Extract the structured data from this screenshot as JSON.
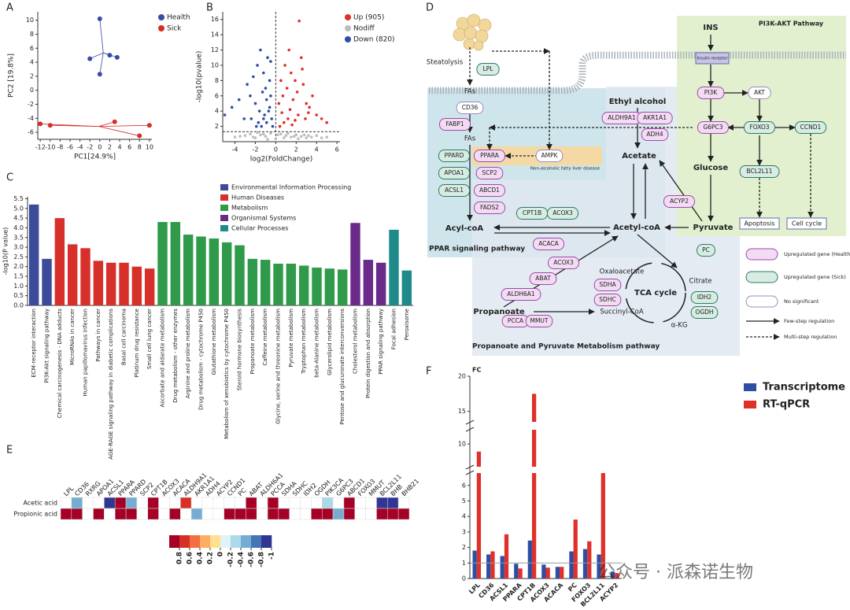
{
  "panel_labels": [
    "A",
    "B",
    "C",
    "D",
    "E",
    "F"
  ],
  "watermark": "公众号 · 派森诺生物",
  "chart_data": [
    {
      "type": "scatter",
      "xlabel": "PC1[24.9%]",
      "ylabel": "PC2 [19.8%]",
      "xlim": [
        -12.5,
        10.5
      ],
      "ylim": [
        -7,
        11.2
      ],
      "xticks": [
        -12,
        -10,
        -8,
        -6,
        -4,
        -2,
        0,
        2,
        4,
        6,
        8,
        10
      ],
      "yticks": [
        -6,
        -4,
        -2,
        0,
        2,
        4,
        6,
        8,
        10
      ],
      "connectors": true,
      "series": [
        {
          "name": "Health",
          "color": "#3b4aa8",
          "x": [
            0,
            -2,
            2,
            3.5,
            0
          ],
          "y": [
            10.2,
            4.5,
            5,
            4.7,
            2.3
          ]
        },
        {
          "name": "Sick",
          "color": "#d62d28",
          "x": [
            -12,
            -10,
            3,
            8,
            10
          ],
          "y": [
            -4.8,
            -5,
            -4.5,
            -6.5,
            -5
          ]
        }
      ]
    },
    {
      "type": "scatter",
      "xlabel": "log2(FoldChange)",
      "ylabel": "-log10(pvalue)",
      "xlim": [
        -5.2,
        6.3
      ],
      "ylim": [
        0,
        17
      ],
      "xticks": [
        -4,
        -2,
        0,
        2,
        4,
        6
      ],
      "yticks": [
        2,
        4,
        6,
        8,
        10,
        12,
        14,
        16
      ],
      "thresholds": {
        "x": 0,
        "y": 1.3
      },
      "series": [
        {
          "name": "Up (905)",
          "color": "#e0302a",
          "x": [
            0.3,
            0.5,
            0.7,
            0.9,
            1.1,
            1.3,
            1.5,
            1.7,
            1.9,
            2.1,
            2.3,
            2.5,
            2.7,
            3,
            3.3,
            3.6,
            4,
            4.5,
            5,
            2.6,
            1.2,
            0.8,
            1.6,
            2.2,
            0.6,
            1.4,
            2.9,
            0.4,
            1.9,
            3.2
          ],
          "y": [
            5,
            8,
            6,
            10,
            7,
            12,
            9,
            5.5,
            8,
            6.5,
            15.8,
            11,
            7.5,
            5,
            4.5,
            6,
            3.5,
            3,
            2.5,
            9.5,
            3,
            2.5,
            2.2,
            3.5,
            3.8,
            4.2,
            3,
            2,
            2.8,
            3.8
          ]
        },
        {
          "name": "Nodiff",
          "color": "#bdbdbd",
          "x": [
            -4,
            -3,
            -2.5,
            -2,
            -1.5,
            -1,
            -0.5,
            0,
            0.5,
            1,
            1.5,
            2,
            2.5,
            3,
            3.5,
            4,
            4.5,
            5,
            -3.5,
            -1.8,
            -0.8,
            0.2,
            1.2,
            2.2,
            3.2,
            -2.2,
            -1.2,
            0.8,
            1.8,
            2.8
          ],
          "y": [
            0.6,
            0.8,
            1,
            0.5,
            0.9,
            0.7,
            1.1,
            0.4,
            1,
            0.8,
            0.6,
            0.9,
            0.7,
            0.5,
            0.6,
            0.8,
            0.5,
            0.6,
            0.7,
            1.2,
            0.3,
            0.9,
            1.1,
            0.4,
            0.8,
            0.6,
            1,
            0.5,
            0.7,
            0.9
          ]
        },
        {
          "name": "Down (820)",
          "color": "#2c4fa3",
          "x": [
            -5,
            -4.3,
            -3.6,
            -3.1,
            -2.8,
            -2.5,
            -2.2,
            -2,
            -1.8,
            -1.6,
            -1.5,
            -1.3,
            -1.2,
            -1.1,
            -1,
            -0.9,
            -0.8,
            -0.7,
            -0.6,
            -0.5,
            -0.4,
            -0.3,
            -1.7,
            -2.4,
            -1.4,
            -0.9,
            -0.6,
            -1.9,
            -1.2,
            -0.5
          ],
          "y": [
            3.5,
            4.5,
            5.5,
            3,
            7.5,
            6,
            8.5,
            5,
            10,
            4,
            12,
            6.5,
            9,
            3.5,
            7,
            5.5,
            11,
            4,
            8,
            6,
            3,
            2,
            2.5,
            3,
            2,
            2.5,
            4.5,
            2,
            3,
            10.5
          ]
        }
      ]
    },
    {
      "type": "bar",
      "ylabel": "-log10(P value)",
      "ylim": [
        0,
        5.6
      ],
      "yticks": [
        {
          "value": 0,
          "label": "0.0"
        },
        {
          "value": 0.5,
          "label": "0.5"
        },
        {
          "value": 1,
          "label": "1.0"
        },
        {
          "value": 1.5,
          "label": "1.5"
        },
        {
          "value": 2,
          "label": "2.0"
        },
        {
          "value": 2.5,
          "label": "2.5"
        },
        {
          "value": 3,
          "label": "3.0"
        },
        {
          "value": 3.5,
          "label": "3.5"
        },
        {
          "value": 4,
          "label": "4.0"
        },
        {
          "value": 4.5,
          "label": "4.5"
        },
        {
          "value": 5,
          "label": "5.0"
        },
        {
          "value": 5.5,
          "label": "5.5"
        }
      ],
      "series": [
        {
          "name": "Environmental Information Processing",
          "color": "#3b4b9a",
          "categories": [
            "ECM-receptor interaction",
            "PI3K-Akt signaling pathway"
          ],
          "values": [
            5.2,
            2.4
          ]
        },
        {
          "name": "Human Diseases",
          "color": "#d7302a",
          "categories": [
            "Chemical carcinogenesis - DNA adducts",
            "MicroRNAs in cancer",
            "Human papillomavirus infection",
            "Pathways in cancer",
            "AGE-RAGE signaling pathway in diabetic complications",
            "Basal cell carcinoma",
            "Platinum drug resistance",
            "Small cell lung cancer"
          ],
          "values": [
            4.5,
            3.15,
            2.95,
            2.3,
            2.2,
            2.2,
            2.0,
            1.9
          ]
        },
        {
          "name": "Metabolism",
          "color": "#2e9a4a",
          "categories": [
            "Ascorbate and aldarate metabolism",
            "Drug metabolism - other enzymes",
            "Arginine and proline metabolism",
            "Drug metabolism - cytochrome P450",
            "Glutathione metabolism",
            "Metabolism of xenobiotics by cytochrome P450",
            "Steroid hormone biosynthesis",
            "Propanoate metabolism",
            "Caffeine metabolism",
            "Glycine, serine and threonine metabolism",
            "Pyruvate metabolism",
            "Tryptophan metabolism",
            "beta-Alanine metabolism",
            "Glycerolipid metabolism",
            "Pentose and glucuronate interconversions"
          ],
          "values": [
            4.3,
            4.3,
            3.65,
            3.55,
            3.45,
            3.25,
            3.1,
            2.4,
            2.35,
            2.15,
            2.15,
            2.05,
            1.95,
            1.9,
            1.85
          ]
        },
        {
          "name": "Organismal Systems",
          "color": "#6a2a8a",
          "categories": [
            "Cholesterol metabolism",
            "Protein digestion and absorption",
            "PPAR signaling pathway"
          ],
          "values": [
            4.25,
            2.35,
            2.2
          ]
        },
        {
          "name": "Cellular Processes",
          "color": "#1e8a8a",
          "categories": [
            "Focal adhesion",
            "Peroxisome"
          ],
          "values": [
            3.9,
            1.8
          ]
        }
      ]
    },
    {
      "type": "heatmap",
      "columns": [
        "LPL",
        "CD36",
        "RXRG",
        "APOA1",
        "ACSL1",
        "PPARA",
        "PPARD",
        "SCP2",
        "CPT1B",
        "ACOX3",
        "ACACA",
        "ALDH9A1",
        "AKR1A1",
        "ADH4",
        "ACYP2",
        "CCND1",
        "PC",
        "ABAT",
        "ALDH6A1",
        "PCCA",
        "SDHA",
        "SDHC",
        "IDH2",
        "OGDH",
        "PIK3CA",
        "G6PC3",
        "ABCD1",
        "FOXO3",
        "MMUT",
        "BCL2L11",
        "BHB",
        "BHB21"
      ],
      "rows": [
        "Acetic acid",
        "Propionic acid"
      ],
      "values": [
        [
          null,
          -0.5,
          null,
          null,
          -0.9,
          0.9,
          -0.5,
          null,
          0.8,
          null,
          null,
          0.7,
          null,
          null,
          null,
          null,
          null,
          0.8,
          null,
          0.8,
          null,
          null,
          null,
          null,
          -0.3,
          null,
          0.8,
          null,
          null,
          -0.9,
          -0.9,
          null
        ],
        [
          0.9,
          0.9,
          null,
          0.8,
          null,
          0.8,
          0.8,
          null,
          0.9,
          null,
          0.8,
          null,
          -0.5,
          null,
          null,
          0.8,
          0.8,
          0.8,
          null,
          0.8,
          0.8,
          null,
          null,
          0.9,
          0.8,
          -0.4,
          0.8,
          null,
          null,
          0.9,
          0.9,
          0.8
        ]
      ],
      "clim": [
        -1,
        1
      ],
      "colormap": [
        "#a50026",
        "#d73027",
        "#f46d43",
        "#fdae61",
        "#fee090",
        "#e0f3f8",
        "#abd9e9",
        "#74add1",
        "#4575b4",
        "#313695"
      ],
      "cticks": [
        0.8,
        0.6,
        0.4,
        0.2,
        0,
        -0.2,
        -0.4,
        -0.6,
        -0.8,
        -1
      ]
    },
    {
      "type": "bar",
      "ylabel": "FC",
      "ylim": [
        0,
        20
      ],
      "yticks": [
        0,
        1,
        2,
        3,
        4,
        5,
        6,
        10,
        15,
        20
      ],
      "axis_breaks": [
        [
          6.8,
          7.6
        ],
        [
          11.5,
          13.5
        ]
      ],
      "hline": 1,
      "categories": [
        "LPL",
        "CD36",
        "ACSL1",
        "PPARA",
        "CPT1B",
        "ACOX3",
        "ACACA",
        "PC",
        "FOXO3",
        "BCL2L11",
        "ACYP2"
      ],
      "series": [
        {
          "name": "Transcriptome",
          "color": "#2c4fa3",
          "values": [
            1.8,
            1.55,
            1.45,
            0.95,
            2.45,
            0.9,
            0.75,
            1.75,
            1.9,
            1.55,
            0.45
          ]
        },
        {
          "name": "RT-qPCR",
          "color": "#e0302a",
          "values": [
            9.2,
            1.75,
            2.85,
            0.65,
            17.5,
            0.7,
            0.75,
            3.8,
            2.4,
            7.2,
            0.35
          ]
        }
      ]
    }
  ],
  "diagram": {
    "pathways": [
      "PI3K-AKT Pathway",
      "PPAR signaling pathway",
      "Propanoate and Pyruvate Metabolism pathway"
    ],
    "nodes": [
      {
        "label": "Steatolysis",
        "kind": "text"
      },
      {
        "label": "LPL",
        "kind": "sick"
      },
      {
        "label": "FAs",
        "kind": "text"
      },
      {
        "label": "CD36",
        "kind": "none"
      },
      {
        "label": "FABP1",
        "kind": "health"
      },
      {
        "label": "FAs",
        "kind": "text"
      },
      {
        "label": "PPARD",
        "kind": "sick"
      },
      {
        "label": "APOA1",
        "kind": "sick"
      },
      {
        "label": "ACSL1",
        "kind": "sick"
      },
      {
        "label": "PPARA",
        "kind": "health"
      },
      {
        "label": "SCP2",
        "kind": "health"
      },
      {
        "label": "ABCD1",
        "kind": "health"
      },
      {
        "label": "FADS2",
        "kind": "health"
      },
      {
        "label": "AMPK",
        "kind": "none"
      },
      {
        "label": "Non-alcoholic fatty liver disease",
        "kind": "note"
      },
      {
        "label": "CPT1B",
        "kind": "sick"
      },
      {
        "label": "ACOX3",
        "kind": "sick"
      },
      {
        "label": "ACACA",
        "kind": "health"
      },
      {
        "label": "Acyl-coA",
        "kind": "bold"
      },
      {
        "label": "Acetyl-coA",
        "kind": "bold"
      },
      {
        "label": "Ethyl alcohol",
        "kind": "bold"
      },
      {
        "label": "ALDH9A1",
        "kind": "health"
      },
      {
        "label": "AKR1A1",
        "kind": "health"
      },
      {
        "label": "ADH4",
        "kind": "health"
      },
      {
        "label": "Acetate",
        "kind": "bold"
      },
      {
        "label": "ACYP2",
        "kind": "health"
      },
      {
        "label": "Pyruvate",
        "kind": "bold"
      },
      {
        "label": "Glucose",
        "kind": "bold"
      },
      {
        "label": "G6PC3",
        "kind": "health"
      },
      {
        "label": "INS",
        "kind": "bold"
      },
      {
        "label": "Insulin receptor",
        "kind": "small"
      },
      {
        "label": "PI3K",
        "kind": "health"
      },
      {
        "label": "AKT",
        "kind": "none"
      },
      {
        "label": "FOXO3",
        "kind": "sick"
      },
      {
        "label": "CCND1",
        "kind": "sick"
      },
      {
        "label": "BCL2L11",
        "kind": "sick"
      },
      {
        "label": "Apoptosis",
        "kind": "box"
      },
      {
        "label": "Cell cycle",
        "kind": "box"
      },
      {
        "label": "PC",
        "kind": "sick"
      },
      {
        "label": "ACOX3",
        "kind": "health"
      },
      {
        "label": "ABAT",
        "kind": "health"
      },
      {
        "label": "ALDH6A1",
        "kind": "health"
      },
      {
        "label": "Oxaloacetate",
        "kind": "text"
      },
      {
        "label": "Citrate",
        "kind": "text"
      },
      {
        "label": "SDHA",
        "kind": "health"
      },
      {
        "label": "SDHC",
        "kind": "health"
      },
      {
        "label": "TCA cycle",
        "kind": "bold"
      },
      {
        "label": "IDH2",
        "kind": "sick"
      },
      {
        "label": "OGDH",
        "kind": "sick"
      },
      {
        "label": "Propanoate",
        "kind": "bold"
      },
      {
        "label": "Succinyl-CoA",
        "kind": "text"
      },
      {
        "label": "α-KG",
        "kind": "text"
      },
      {
        "label": "PCCA",
        "kind": "health"
      },
      {
        "label": "MMUT",
        "kind": "health"
      }
    ],
    "legend": [
      {
        "label": "Upregulated gene (Health)",
        "kind": "health"
      },
      {
        "label": "Upregulated gene (Sick)",
        "kind": "sick"
      },
      {
        "label": "No significant",
        "kind": "none"
      },
      {
        "label": "Few-step regulation",
        "kind": "solid"
      },
      {
        "label": "Multi-step regulation",
        "kind": "dashed"
      }
    ]
  }
}
